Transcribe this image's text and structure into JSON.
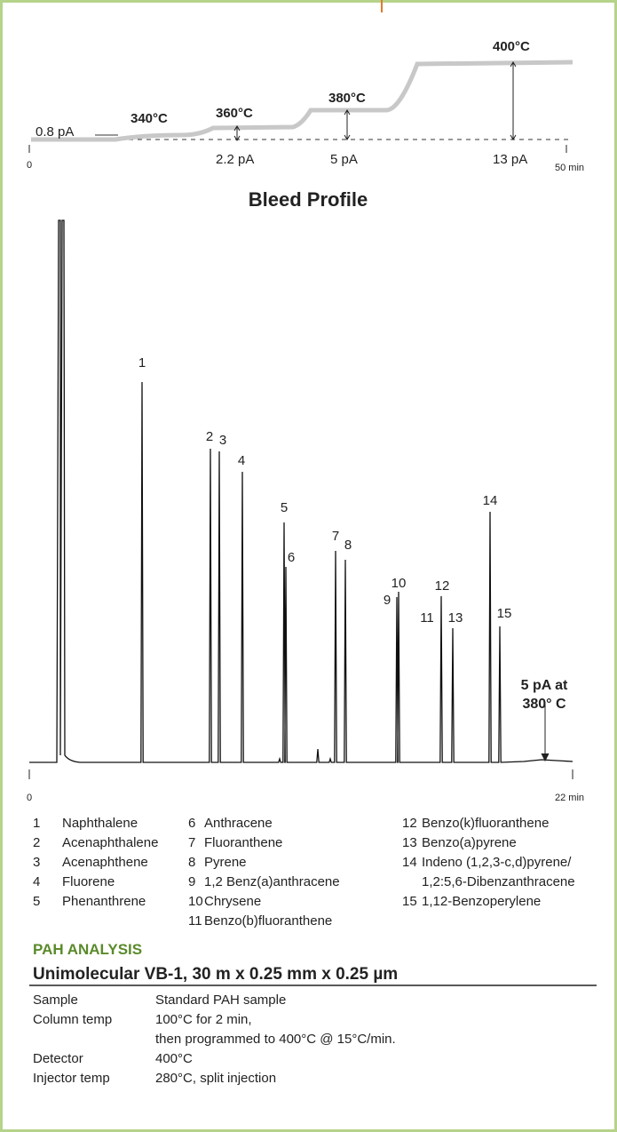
{
  "bleed_profile": {
    "baseline_label": "0.8 pA",
    "temperatures": [
      "340°C",
      "360°C",
      "380°C",
      "400°C"
    ],
    "bleed_levels": [
      "2.2 pA",
      "5 pA",
      "13 pA"
    ],
    "axis_start": "0",
    "axis_end": "50 min",
    "title": "Bleed Profile"
  },
  "chromatogram": {
    "peak_labels": [
      "1",
      "2",
      "3",
      "4",
      "5",
      "6",
      "7",
      "8",
      "9",
      "10",
      "11",
      "12",
      "13",
      "14",
      "15"
    ],
    "annotation_lines": [
      "5 pA at",
      "380° C"
    ],
    "axis_start": "0",
    "axis_end": "22 min"
  },
  "legend": [
    {
      "number": "1",
      "name": "Naphthalene"
    },
    {
      "number": "2",
      "name": "Acenaphthalene"
    },
    {
      "number": "3",
      "name": "Acenaphthene"
    },
    {
      "number": "4",
      "name": "Fluorene"
    },
    {
      "number": "5",
      "name": "Phenanthrene"
    },
    {
      "number": "6",
      "name": "Anthracene"
    },
    {
      "number": "7",
      "name": "Fluoranthene"
    },
    {
      "number": "8",
      "name": "Pyrene"
    },
    {
      "number": "9",
      "name": "1,2 Benz(a)anthracene"
    },
    {
      "number": "10",
      "name": "Chrysene"
    },
    {
      "number": "11",
      "name": "Benzo(b)fluoranthene"
    },
    {
      "number": "12",
      "name": "Benzo(k)fluoranthene"
    },
    {
      "number": "13",
      "name": "Benzo(a)pyrene"
    },
    {
      "number": "14",
      "name": "Indeno (1,2,3-c,d)pyrene/",
      "name_continued": "1,2:5,6-Dibenzanthracene"
    },
    {
      "number": "15",
      "name": "1,12-Benzoperylene"
    }
  ],
  "section_title": "PAH ANALYSIS",
  "column_title": "Unimolecular VB-1, 30 m x 0.25 mm x 0.25 µm",
  "conditions": [
    {
      "label": "Sample",
      "value": "Standard PAH sample"
    },
    {
      "label": "Column temp",
      "value": "100°C for 2 min,",
      "value_continued": "then programmed to 400°C @ 15°C/min."
    },
    {
      "label": "Detector",
      "value": "400°C"
    },
    {
      "label": "Injector temp",
      "value": "280°C, split injection"
    }
  ]
}
